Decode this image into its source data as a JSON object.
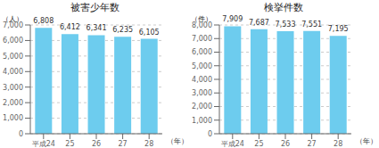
{
  "chart_data": [
    {
      "type": "bar",
      "title": "被害少年数",
      "ylabel": "（人）",
      "xlabel": "（年）",
      "categories": [
        "平成24",
        "25",
        "26",
        "27",
        "28"
      ],
      "values": [
        6808,
        6412,
        6341,
        6235,
        6105
      ],
      "value_labels": [
        "6,808",
        "6,412",
        "6,341",
        "6,235",
        "6,105"
      ],
      "color": "#6DCCEE",
      "ylim": [
        0,
        7000
      ],
      "yticks": [
        0,
        {
          "value": 1000,
          "label": "1,000"
        },
        {
          "value": 2000,
          "label": "2,000"
        },
        {
          "value": 3000,
          "label": "3,000"
        },
        {
          "value": 4000,
          "label": "4,000"
        },
        {
          "value": 5000,
          "label": "5,000"
        },
        {
          "value": 6000,
          "label": "6,000"
        },
        {
          "value": 7000,
          "label": "7,000"
        }
      ],
      "grid": true,
      "data_labels": true
    },
    {
      "type": "bar",
      "title": "検挙件数",
      "ylabel": "（件）",
      "xlabel": "（年）",
      "categories": [
        "平成24",
        "25",
        "26",
        "27",
        "28"
      ],
      "values": [
        7909,
        7687,
        7533,
        7551,
        7195
      ],
      "value_labels": [
        "7,909",
        "7,687",
        "7,533",
        "7,551",
        "7,195"
      ],
      "color": "#6DCCEE",
      "ylim": [
        0,
        8000
      ],
      "yticks": [
        0,
        {
          "value": 1000,
          "label": "1,000"
        },
        {
          "value": 2000,
          "label": "2,000"
        },
        {
          "value": 3000,
          "label": "3,000"
        },
        {
          "value": 4000,
          "label": "4,000"
        },
        {
          "value": 5000,
          "label": "5,000"
        },
        {
          "value": 6000,
          "label": "6,000"
        },
        {
          "value": 7000,
          "label": "7,000"
        },
        {
          "value": 8000,
          "label": "8,000"
        }
      ],
      "grid": true,
      "data_labels": true
    }
  ]
}
